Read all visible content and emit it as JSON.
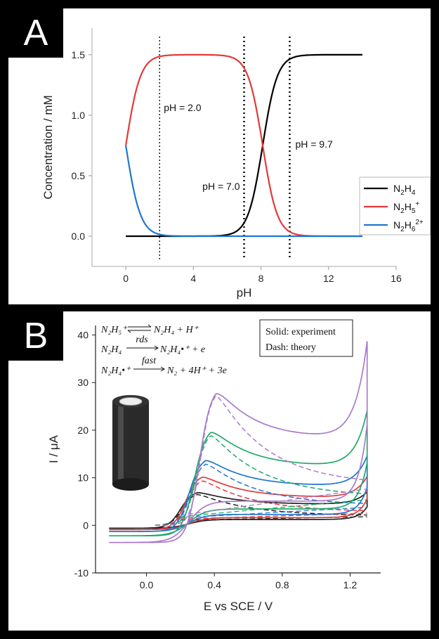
{
  "chart_data": [
    {
      "panel_label": "A",
      "type": "line",
      "xlabel": "pH",
      "ylabel": "Concentration / mM",
      "xlim": [
        -2,
        16
      ],
      "ylim": [
        -0.25,
        1.72
      ],
      "xticks": [
        0,
        4,
        8,
        12,
        16
      ],
      "yticks": [
        0.0,
        0.5,
        1.0,
        1.5
      ],
      "ytick_labels": [
        "0.0",
        "0.5",
        "1.0",
        "1.5"
      ],
      "total_mM": 1.5,
      "pKa": [
        0.0,
        8.1
      ],
      "x_range": [
        0,
        14
      ],
      "series": [
        {
          "name": "N₂H₄",
          "sub": "2",
          "sub2": "4",
          "sup": "",
          "color": "#000000"
        },
        {
          "name": "N₂H₅⁺",
          "sub": "2",
          "sub2": "5",
          "sup": "+",
          "color": "#e23a3a"
        },
        {
          "name": "N₂H₆²⁺",
          "sub": "2",
          "sub2": "6",
          "sup": "2+",
          "color": "#1f77d0"
        }
      ],
      "vlines": [
        {
          "x": 2.0,
          "label": "pH = 2.0",
          "style": "fine"
        },
        {
          "x": 7.0,
          "label": "pH = 7.0",
          "style": "bold"
        },
        {
          "x": 9.7,
          "label": "pH = 9.7",
          "style": "bold"
        }
      ],
      "legend_position": "right"
    },
    {
      "panel_label": "B",
      "type": "line",
      "xlabel": "E vs SCE / V",
      "ylabel": "I / μA",
      "xlim": [
        -0.3,
        1.38
      ],
      "ylim": [
        -10,
        42
      ],
      "xticks": [
        0.0,
        0.4,
        0.8,
        1.2
      ],
      "xtick_labels": [
        "0.0",
        "0.4",
        "0.8",
        "1.2"
      ],
      "yticks": [
        -10,
        0,
        10,
        20,
        30,
        40
      ],
      "series": [
        {
          "color": "#222222",
          "peak_E": 0.3,
          "peak_I": 7.3,
          "plateau": 4.4,
          "end_I": 7.0,
          "start_low": -0.6,
          "theory_peak": 6.8,
          "theory_end": 2.0
        },
        {
          "color": "#e23a3a",
          "peak_E": 0.33,
          "peak_I": 10.8,
          "plateau": 5.8,
          "end_I": 10.2,
          "start_low": -0.9,
          "theory_peak": 9.8,
          "theory_end": 2.8
        },
        {
          "color": "#1f77d0",
          "peak_E": 0.35,
          "peak_I": 14.5,
          "plateau": 8.2,
          "end_I": 14.5,
          "start_low": -1.3,
          "theory_peak": 13.5,
          "theory_end": 4.2
        },
        {
          "color": "#22a86a",
          "peak_E": 0.38,
          "peak_I": 20.8,
          "plateau": 12.3,
          "end_I": 24.0,
          "start_low": -2.2,
          "theory_peak": 19.8,
          "theory_end": 6.0
        },
        {
          "color": "#a87acd",
          "peak_E": 0.41,
          "peak_I": 29.5,
          "plateau": 18.2,
          "end_I": 38.5,
          "start_low": -3.6,
          "theory_peak": 28.6,
          "theory_end": 8.5
        }
      ],
      "legend_lines": [
        "Solid: experiment",
        "Dash: theory"
      ],
      "reactions": {
        "r1_left": "N₂H₅⁺",
        "r1_right": "N₂H₄ + H⁺",
        "r2_left": "N₂H₄",
        "r2_over": "rds",
        "r2_right": "N₂H₄•⁺ + e",
        "r3_left": "N₂H₄•⁺",
        "r3_over": "fast",
        "r3_right": "N₂ + 4H⁺ + 3e"
      }
    }
  ]
}
